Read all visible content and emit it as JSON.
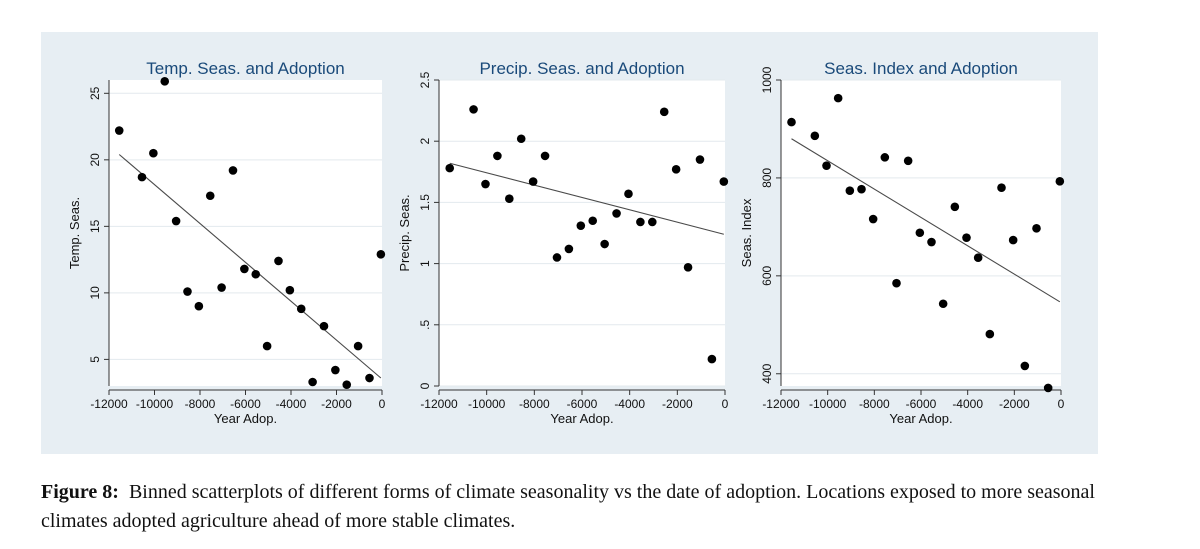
{
  "caption": {
    "label": "Figure 8:",
    "text": "Binned scatterplots of different forms of climate seasonality vs the date of adoption. Locations exposed to more seasonal climates adopted agriculture ahead of more stable climates."
  },
  "chart_data": [
    {
      "type": "scatter",
      "title": "Temp. Seas. and Adoption",
      "xlabel": "Year Adop.",
      "ylabel": "Temp. Seas.",
      "xlim": [
        -12000,
        0
      ],
      "ylim": [
        3,
        26
      ],
      "xticks": [
        -12000,
        -10000,
        -8000,
        -6000,
        -4000,
        -2000,
        0
      ],
      "xtick_labels": [
        "-12000",
        "-10000",
        "-8000",
        "-6000",
        "-4000",
        "-2000",
        "0"
      ],
      "yticks": [
        5,
        10,
        15,
        20,
        25
      ],
      "ytick_labels": [
        "5",
        "10",
        "15",
        "20",
        "25"
      ],
      "grid": true,
      "points": [
        [
          -11550,
          22.2
        ],
        [
          -10550,
          18.7
        ],
        [
          -10050,
          20.5
        ],
        [
          -9550,
          25.9
        ],
        [
          -9050,
          15.4
        ],
        [
          -8550,
          10.1
        ],
        [
          -8050,
          9.0
        ],
        [
          -7550,
          17.3
        ],
        [
          -7050,
          10.4
        ],
        [
          -6550,
          19.2
        ],
        [
          -6050,
          11.8
        ],
        [
          -5550,
          11.4
        ],
        [
          -5050,
          6.0
        ],
        [
          -4550,
          12.4
        ],
        [
          -4050,
          10.2
        ],
        [
          -3550,
          8.8
        ],
        [
          -3050,
          3.3
        ],
        [
          -2550,
          7.5
        ],
        [
          -2050,
          4.2
        ],
        [
          -1550,
          3.1
        ],
        [
          -1050,
          6.0
        ],
        [
          -550,
          3.6
        ],
        [
          -50,
          12.9
        ]
      ],
      "fit_line": [
        [
          -11550,
          20.4
        ],
        [
          -50,
          3.6
        ]
      ],
      "colors": {
        "points": "#000000",
        "fit": "#4a4a4a",
        "plot_bg": "#ffffff",
        "grid": "#e3e9ee"
      }
    },
    {
      "type": "scatter",
      "title": "Precip. Seas. and Adoption",
      "xlabel": "Year Adop.",
      "ylabel": "Precip. Seas.",
      "xlim": [
        -12000,
        0
      ],
      "ylim": [
        0,
        2.5
      ],
      "xticks": [
        -12000,
        -10000,
        -8000,
        -6000,
        -4000,
        -2000,
        0
      ],
      "xtick_labels": [
        "-12000",
        "-10000",
        "-8000",
        "-6000",
        "-4000",
        "-2000",
        "0"
      ],
      "yticks": [
        0,
        0.5,
        1,
        1.5,
        2,
        2.5
      ],
      "ytick_labels": [
        "0",
        ".5",
        "1",
        "1.5",
        "2",
        "2.5"
      ],
      "grid": true,
      "points": [
        [
          -11550,
          1.78
        ],
        [
          -10550,
          2.26
        ],
        [
          -10050,
          1.65
        ],
        [
          -9550,
          1.88
        ],
        [
          -9050,
          1.53
        ],
        [
          -8550,
          2.02
        ],
        [
          -8050,
          1.67
        ],
        [
          -7550,
          1.88
        ],
        [
          -7050,
          1.05
        ],
        [
          -6550,
          1.12
        ],
        [
          -6050,
          1.31
        ],
        [
          -5550,
          1.35
        ],
        [
          -5050,
          1.16
        ],
        [
          -4550,
          1.41
        ],
        [
          -4050,
          1.57
        ],
        [
          -3550,
          1.34
        ],
        [
          -3050,
          1.34
        ],
        [
          -2550,
          2.24
        ],
        [
          -2050,
          1.77
        ],
        [
          -1550,
          0.97
        ],
        [
          -1050,
          1.85
        ],
        [
          -550,
          0.22
        ],
        [
          -50,
          1.67
        ]
      ],
      "fit_line": [
        [
          -11550,
          1.82
        ],
        [
          -50,
          1.24
        ]
      ],
      "colors": {
        "points": "#000000",
        "fit": "#4a4a4a",
        "plot_bg": "#ffffff",
        "grid": "#e3e9ee"
      }
    },
    {
      "type": "scatter",
      "title": "Seas. Index and Adoption",
      "xlabel": "Year Adop.",
      "ylabel": "Seas. Index",
      "xlim": [
        -12000,
        0
      ],
      "ylim": [
        375,
        1000
      ],
      "xticks": [
        -12000,
        -10000,
        -8000,
        -6000,
        -4000,
        -2000,
        0
      ],
      "xtick_labels": [
        "-12000",
        "-10000",
        "-8000",
        "-6000",
        "-4000",
        "-2000",
        "0"
      ],
      "yticks": [
        400,
        600,
        800,
        1000
      ],
      "ytick_labels": [
        "400",
        "600",
        "800",
        "1000"
      ],
      "grid": true,
      "points": [
        [
          -11550,
          914
        ],
        [
          -10550,
          886
        ],
        [
          -10050,
          825
        ],
        [
          -9550,
          963
        ],
        [
          -9050,
          774
        ],
        [
          -8550,
          777
        ],
        [
          -8050,
          716
        ],
        [
          -7550,
          842
        ],
        [
          -7050,
          585
        ],
        [
          -6550,
          835
        ],
        [
          -6050,
          688
        ],
        [
          -5550,
          669
        ],
        [
          -5050,
          543
        ],
        [
          -4550,
          741
        ],
        [
          -4050,
          678
        ],
        [
          -3550,
          637
        ],
        [
          -3050,
          481
        ],
        [
          -2550,
          780
        ],
        [
          -2050,
          673
        ],
        [
          -1550,
          416
        ],
        [
          -1050,
          697
        ],
        [
          -550,
          371
        ],
        [
          -50,
          793
        ]
      ],
      "fit_line": [
        [
          -11550,
          880
        ],
        [
          -50,
          547
        ]
      ],
      "colors": {
        "points": "#000000",
        "fit": "#4a4a4a",
        "plot_bg": "#ffffff",
        "grid": "#e3e9ee"
      }
    }
  ]
}
